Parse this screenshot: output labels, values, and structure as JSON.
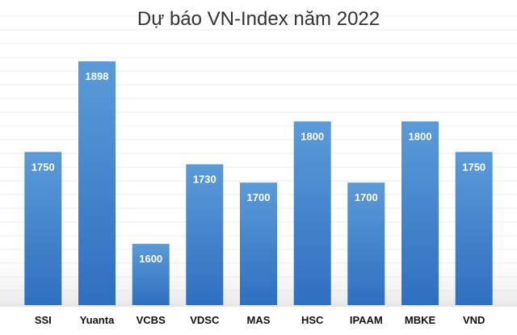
{
  "chart_data": {
    "type": "bar",
    "title": "Dự báo VN-Index năm 2022",
    "categories": [
      "SSI",
      "Yuanta",
      "VCBS",
      "VDSC",
      "MAS",
      "HSC",
      "IPAAM",
      "MBKE",
      "VND"
    ],
    "values": [
      1750,
      1898,
      1600,
      1730,
      1700,
      1800,
      1700,
      1800,
      1750
    ],
    "value_labels": [
      "1750",
      "1898",
      "1600",
      "1730",
      "1700",
      "1800",
      "1700",
      "1800",
      "1750"
    ],
    "ylim": [
      1500,
      1900
    ],
    "grid": true,
    "legend": "none",
    "colors": {
      "bar_top": "#5b9bd8",
      "bar_bottom": "#2f6fc0",
      "label": "#ffffff"
    }
  }
}
